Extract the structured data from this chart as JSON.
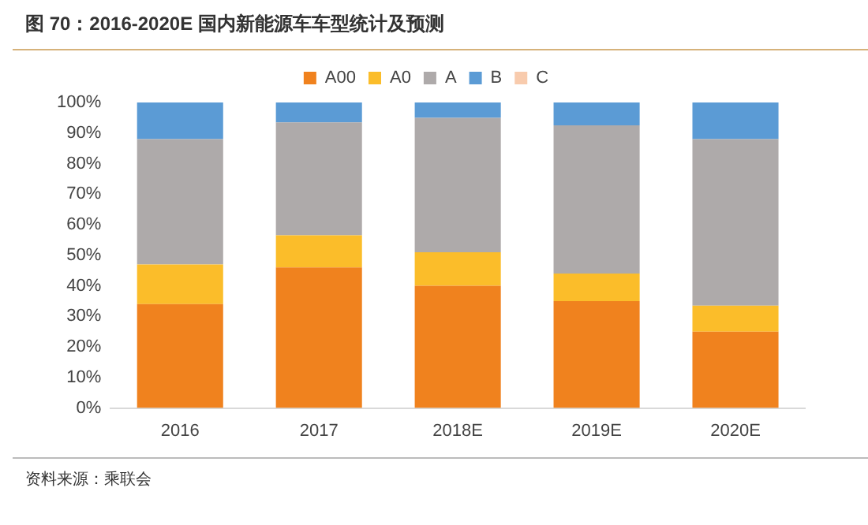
{
  "chart_data": {
    "type": "bar",
    "title": "图 70：2016-2020E 国内新能源车车型统计及预测",
    "categories": [
      "2016",
      "2017",
      "2018E",
      "2019E",
      "2020E"
    ],
    "stacked": true,
    "series": [
      {
        "name": "A00",
        "color": "#f0821e",
        "values": [
          34,
          46,
          40,
          35,
          25
        ]
      },
      {
        "name": "A0",
        "color": "#fbbd2a",
        "values": [
          13,
          10.5,
          11,
          9,
          8.5
        ]
      },
      {
        "name": "A",
        "color": "#aeaaaa",
        "values": [
          41,
          37,
          44,
          48.5,
          54.5
        ]
      },
      {
        "name": "B",
        "color": "#5b9bd5",
        "values": [
          12,
          6.5,
          5,
          7.5,
          12
        ]
      },
      {
        "name": "C",
        "color": "#f8cbad",
        "values": [
          0,
          0,
          0,
          0,
          0
        ]
      }
    ],
    "ylim": [
      0,
      100
    ],
    "yticks": [
      {
        "value": 0,
        "label": "0%"
      },
      {
        "value": 10,
        "label": "10%"
      },
      {
        "value": 20,
        "label": "20%"
      },
      {
        "value": 30,
        "label": "30%"
      },
      {
        "value": 40,
        "label": "40%"
      },
      {
        "value": 50,
        "label": "50%"
      },
      {
        "value": 60,
        "label": "60%"
      },
      {
        "value": 70,
        "label": "70%"
      },
      {
        "value": 80,
        "label": "80%"
      },
      {
        "value": 90,
        "label": "90%"
      },
      {
        "value": 100,
        "label": "100%"
      }
    ],
    "grid": false,
    "legend": "top",
    "annotations": [
      "资料来源：乘联会"
    ]
  }
}
